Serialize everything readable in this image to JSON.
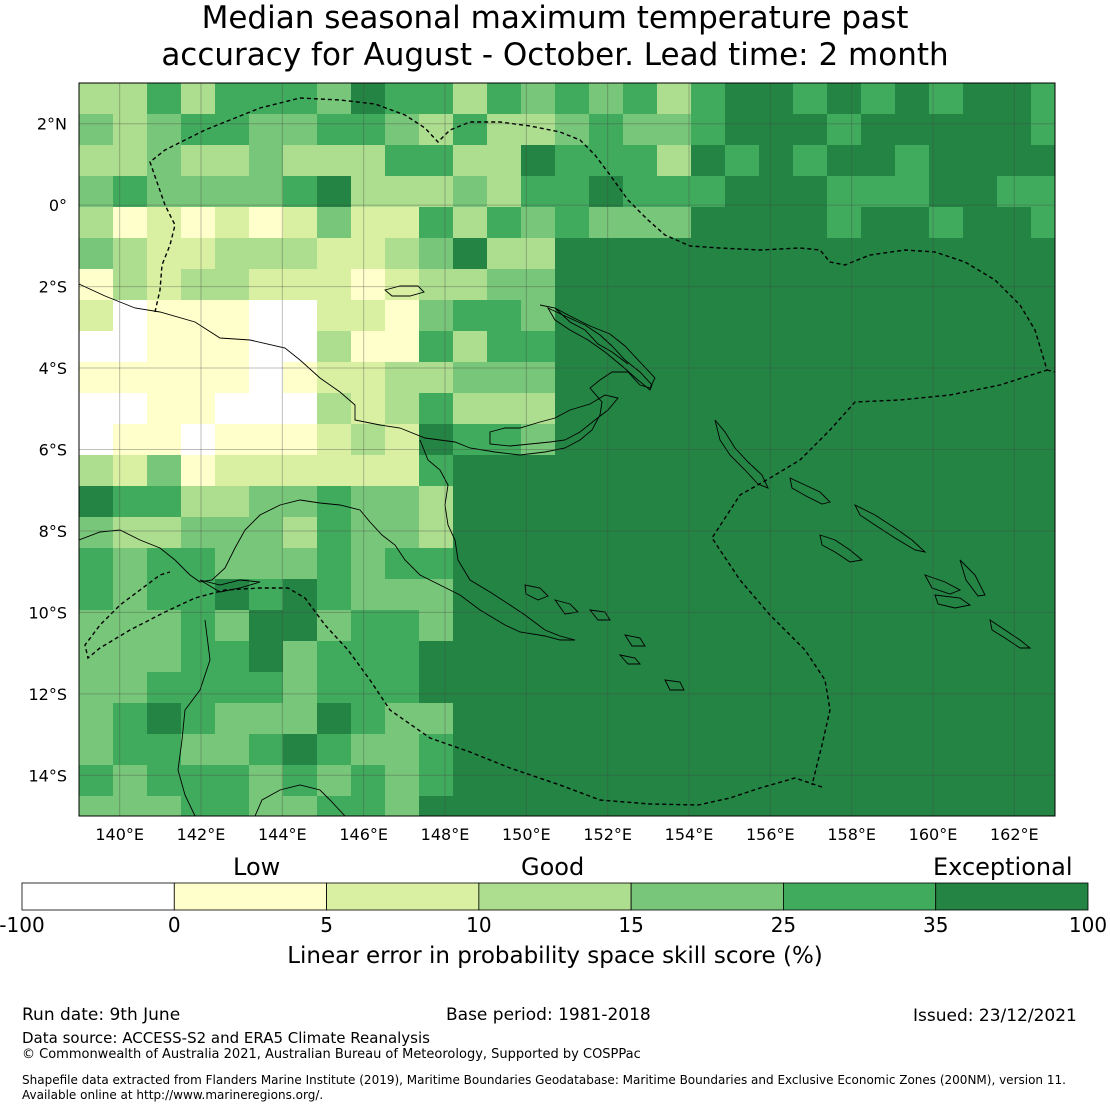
{
  "title": {
    "line1": "Median seasonal maximum temperature past",
    "line2": "accuracy for August - October. Lead time: 2 month"
  },
  "map": {
    "lon_range": [
      139.0,
      163.0
    ],
    "lat_range": [
      -15.0,
      3.0
    ],
    "lon_ticks": [
      "140°E",
      "142°E",
      "144°E",
      "146°E",
      "148°E",
      "150°E",
      "152°E",
      "154°E",
      "156°E",
      "158°E",
      "160°E",
      "162°E"
    ],
    "lat_ticks": [
      "2°N",
      "0°",
      "2°S",
      "4°S",
      "6°S",
      "8°S",
      "10°S",
      "12°S",
      "14°S"
    ],
    "grid": true,
    "eez_boundary": "dashed"
  },
  "colorbar": {
    "category_labels": [
      "Low",
      "Good",
      "Exceptional"
    ],
    "ticks": [
      "-100",
      "0",
      "5",
      "10",
      "15",
      "25",
      "35",
      "100"
    ],
    "colors": [
      "#ffffff",
      "#ffffcc",
      "#d9f0a3",
      "#addd8e",
      "#78c679",
      "#41ab5d",
      "#238443"
    ],
    "label": "Linear error in probability space skill score (%)"
  },
  "footer": {
    "run_date": "Run date: 9th June",
    "base_period": "Base period: 1981-2018",
    "issued": "Issued: 23/12/2021",
    "data_source": "Data source: ACCESS-S2 and ERA5 Climate Reanalysis",
    "copyright": "© Commonwealth of Australia 2021, Australian Bureau of Meteorology, Supported by COSPPac",
    "shapefile_line1": "Shapefile data extracted from Flanders Marine Institute (2019), Maritime Boundaries Geodatabase: Maritime Boundaries and Exclusive Economic Zones (200NM), version 11.",
    "shapefile_line2": "Available online at http://www.marineregions.org/."
  }
}
